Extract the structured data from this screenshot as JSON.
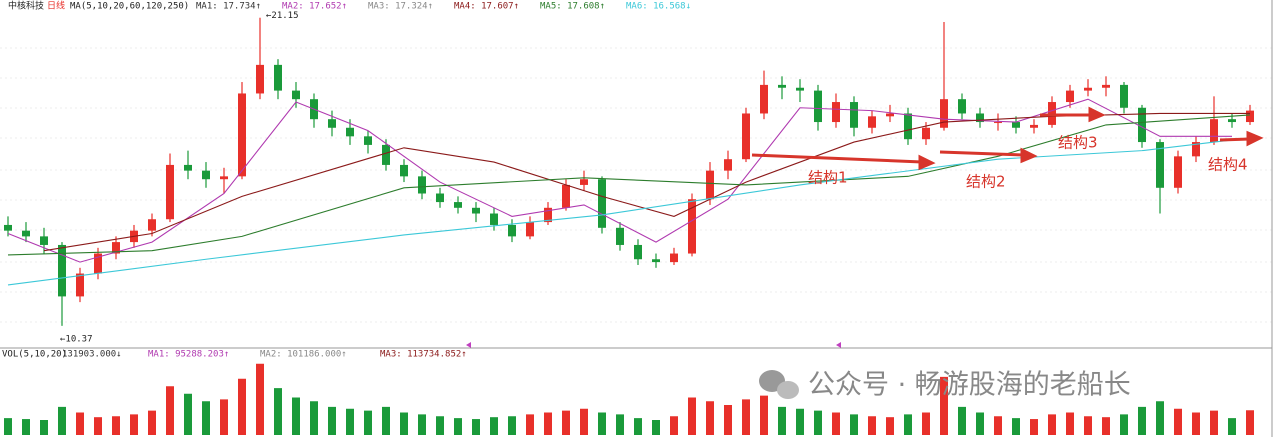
{
  "chart_data": {
    "type": "candlestick",
    "stock_name": "中核科技",
    "period": "日线",
    "ma_label": "MA(5,10,20,60,120,250)",
    "ma_readouts": [
      "MA1: 17.734↑",
      "MA2: 17.652↑",
      "MA3: 17.324↑",
      "MA4: 17.607↑",
      "MA5: 17.608↑",
      "MA6: 16.568↓"
    ],
    "ma_readout_colors": [
      "#333333",
      "#b03ab0",
      "#888888",
      "#8b1a1a",
      "#2d7d2d",
      "#3cc8d8"
    ],
    "ylim": [
      9.7,
      21.35
    ],
    "up_color": "#e8302a",
    "down_color": "#1a9a3a",
    "ohlc": [
      [
        13.9,
        14.2,
        13.5,
        13.7
      ],
      [
        13.7,
        14.0,
        13.3,
        13.5
      ],
      [
        13.5,
        13.8,
        12.9,
        13.2
      ],
      [
        13.2,
        13.3,
        10.37,
        11.4
      ],
      [
        11.4,
        12.4,
        11.2,
        12.2
      ],
      [
        12.2,
        13.1,
        12.0,
        12.9
      ],
      [
        12.9,
        13.5,
        12.7,
        13.3
      ],
      [
        13.3,
        13.9,
        13.1,
        13.7
      ],
      [
        13.7,
        14.3,
        13.5,
        14.1
      ],
      [
        14.1,
        16.4,
        14.0,
        16.0
      ],
      [
        16.0,
        16.5,
        15.5,
        15.8
      ],
      [
        15.8,
        16.1,
        15.2,
        15.5
      ],
      [
        15.5,
        15.9,
        15.0,
        15.6
      ],
      [
        15.6,
        18.9,
        15.5,
        18.5
      ],
      [
        18.5,
        21.15,
        18.3,
        19.5
      ],
      [
        19.5,
        19.7,
        18.3,
        18.6
      ],
      [
        18.6,
        18.9,
        18.0,
        18.3
      ],
      [
        18.3,
        18.5,
        17.3,
        17.6
      ],
      [
        17.6,
        17.9,
        17.0,
        17.3
      ],
      [
        17.3,
        17.6,
        16.7,
        17.0
      ],
      [
        17.0,
        17.2,
        16.4,
        16.7
      ],
      [
        16.7,
        16.9,
        15.8,
        16.0
      ],
      [
        16.0,
        16.2,
        15.4,
        15.6
      ],
      [
        15.6,
        15.8,
        14.8,
        15.0
      ],
      [
        15.0,
        15.2,
        14.5,
        14.7
      ],
      [
        14.7,
        14.9,
        14.3,
        14.5
      ],
      [
        14.5,
        14.7,
        14.0,
        14.3
      ],
      [
        14.3,
        14.5,
        13.7,
        13.9
      ],
      [
        13.9,
        14.1,
        13.3,
        13.5
      ],
      [
        13.5,
        14.2,
        13.4,
        14.0
      ],
      [
        14.0,
        14.7,
        13.9,
        14.5
      ],
      [
        14.5,
        15.5,
        14.4,
        15.3
      ],
      [
        15.3,
        15.8,
        15.1,
        15.5
      ],
      [
        15.5,
        15.6,
        13.6,
        13.8
      ],
      [
        13.8,
        14.0,
        13.0,
        13.2
      ],
      [
        13.2,
        13.4,
        12.5,
        12.7
      ],
      [
        12.7,
        12.9,
        12.4,
        12.6
      ],
      [
        12.6,
        13.1,
        12.5,
        12.9
      ],
      [
        12.9,
        15.0,
        12.8,
        14.8
      ],
      [
        14.8,
        16.1,
        14.6,
        15.8
      ],
      [
        15.8,
        16.5,
        15.5,
        16.2
      ],
      [
        16.2,
        18.0,
        16.1,
        17.8
      ],
      [
        17.8,
        19.3,
        17.6,
        18.8
      ],
      [
        18.8,
        19.1,
        18.3,
        18.7
      ],
      [
        18.7,
        19.0,
        18.2,
        18.6
      ],
      [
        18.6,
        18.8,
        17.2,
        17.5
      ],
      [
        17.5,
        18.5,
        17.3,
        18.2
      ],
      [
        18.2,
        18.4,
        17.0,
        17.3
      ],
      [
        17.3,
        17.9,
        17.1,
        17.7
      ],
      [
        17.7,
        18.1,
        17.5,
        17.8
      ],
      [
        17.8,
        18.0,
        16.7,
        16.9
      ],
      [
        16.9,
        17.5,
        16.7,
        17.3
      ],
      [
        17.3,
        21.0,
        17.2,
        18.3
      ],
      [
        18.3,
        18.5,
        17.6,
        17.8
      ],
      [
        17.8,
        18.0,
        17.3,
        17.5
      ],
      [
        17.5,
        17.8,
        17.2,
        17.5
      ],
      [
        17.5,
        17.7,
        17.1,
        17.3
      ],
      [
        17.3,
        17.6,
        17.1,
        17.4
      ],
      [
        17.4,
        18.4,
        17.3,
        18.2
      ],
      [
        18.2,
        18.8,
        18.0,
        18.6
      ],
      [
        18.6,
        19.0,
        18.4,
        18.7
      ],
      [
        18.7,
        19.1,
        18.4,
        18.8
      ],
      [
        18.8,
        18.9,
        17.8,
        18.0
      ],
      [
        18.0,
        18.1,
        16.6,
        16.8
      ],
      [
        16.8,
        16.9,
        14.3,
        15.2
      ],
      [
        15.2,
        16.5,
        15.0,
        16.3
      ],
      [
        16.3,
        17.0,
        16.1,
        16.8
      ],
      [
        16.8,
        18.4,
        16.7,
        17.6
      ],
      [
        17.6,
        17.8,
        17.3,
        17.5
      ],
      [
        17.5,
        18.1,
        17.4,
        17.9
      ]
    ],
    "ma_series": [
      {
        "color": "#b03ab0",
        "x": [
          0,
          4,
          8,
          12,
          16,
          20,
          24,
          28,
          32,
          36,
          40,
          44,
          48,
          52,
          56,
          60,
          64,
          68
        ],
        "values": [
          13.6,
          12.6,
          13.3,
          15.0,
          18.2,
          17.2,
          15.4,
          14.2,
          14.6,
          13.3,
          14.8,
          18.0,
          17.9,
          17.6,
          17.5,
          18.3,
          17.0,
          17.0
        ]
      },
      {
        "color": "#8b1a1a",
        "x": [
          2,
          8,
          13,
          22,
          27,
          33,
          37,
          41,
          47,
          52,
          58,
          64,
          69
        ],
        "values": [
          13.0,
          13.6,
          14.9,
          16.6,
          16.1,
          14.9,
          14.2,
          15.4,
          16.8,
          17.5,
          17.7,
          17.8,
          17.8
        ]
      },
      {
        "color": "#2d7d2d",
        "x": [
          0,
          8,
          13,
          22,
          32,
          41,
          50,
          55,
          61,
          69
        ],
        "values": [
          12.85,
          13.0,
          13.5,
          15.2,
          15.55,
          15.3,
          15.6,
          16.3,
          17.4,
          17.75
        ]
      },
      {
        "color": "#3cc8d8",
        "x": [
          0,
          11,
          22,
          33,
          44,
          55,
          63,
          69
        ],
        "values": [
          11.8,
          12.7,
          13.55,
          14.25,
          15.3,
          16.2,
          16.5,
          16.95
        ]
      }
    ],
    "high_label": "←21.15",
    "low_label": "←10.37",
    "annotations": [
      "结构1",
      "结构2",
      "结构3",
      "结构4"
    ],
    "volume": {
      "label": "VOL(5,10,20)",
      "readouts": [
        "131903.000↓",
        "MA1: 95288.203↑",
        "MA2: 101186.000↑",
        "MA3: 113734.852↑"
      ],
      "ylim": [
        0,
        400000
      ],
      "values": [
        90000,
        85000,
        80000,
        150000,
        120000,
        95000,
        100000,
        110000,
        130000,
        260000,
        220000,
        180000,
        190000,
        300000,
        380000,
        250000,
        200000,
        180000,
        150000,
        140000,
        130000,
        150000,
        120000,
        110000,
        100000,
        90000,
        85000,
        95000,
        100000,
        110000,
        120000,
        130000,
        140000,
        120000,
        110000,
        90000,
        80000,
        100000,
        200000,
        180000,
        160000,
        190000,
        210000,
        150000,
        140000,
        130000,
        120000,
        110000,
        100000,
        95000,
        110000,
        120000,
        310000,
        150000,
        120000,
        100000,
        90000,
        85000,
        110000,
        120000,
        100000,
        95000,
        110000,
        150000,
        180000,
        140000,
        120000,
        130000,
        90000,
        131903
      ]
    },
    "watermark": "公众号 · 畅游股海的老船长"
  }
}
